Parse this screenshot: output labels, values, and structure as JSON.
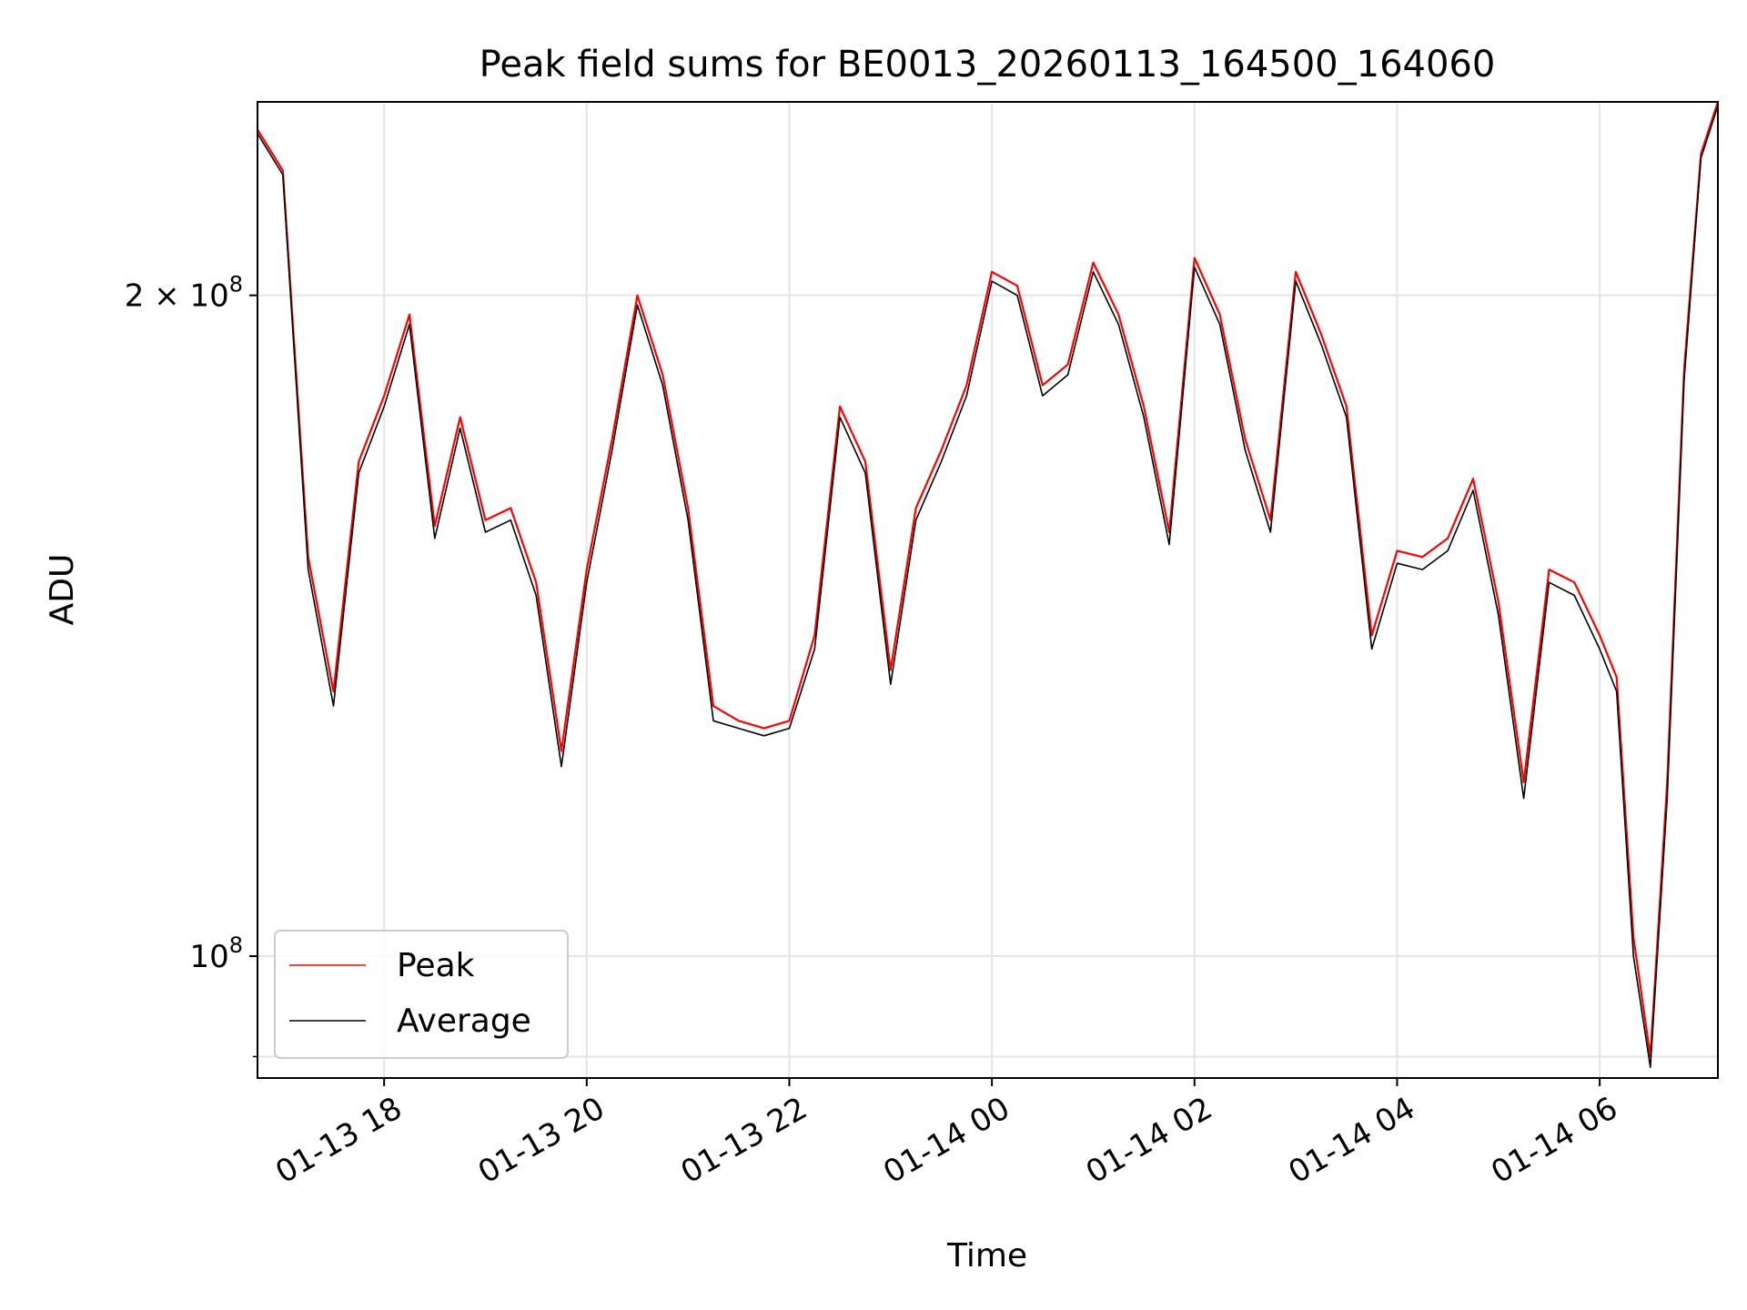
{
  "chart_data": {
    "type": "line",
    "title": "Peak field sums for BE0013_20260113_164500_164060",
    "xlabel": "Time",
    "ylabel": "ADU",
    "y_scale": "log",
    "ylim": [
      88000000,
      245000000
    ],
    "xlim": [
      "2026-01-13 16:45",
      "2026-01-14 07:10"
    ],
    "x_ticks": [
      {
        "t": "2026-01-13 18:00",
        "label": "01-13 18"
      },
      {
        "t": "2026-01-13 20:00",
        "label": "01-13 20"
      },
      {
        "t": "2026-01-13 22:00",
        "label": "01-13 22"
      },
      {
        "t": "2026-01-14 00:00",
        "label": "01-14 00"
      },
      {
        "t": "2026-01-14 02:00",
        "label": "01-14 02"
      },
      {
        "t": "2026-01-14 04:00",
        "label": "01-14 04"
      },
      {
        "t": "2026-01-14 06:00",
        "label": "01-14 06"
      }
    ],
    "y_ticks": [
      {
        "value": 200000000,
        "base": "2 × 10",
        "exp": "8"
      },
      {
        "value": 100000000,
        "base": "10",
        "exp": "8"
      }
    ],
    "y_minor_ticks": [
      90000000
    ],
    "grid": true,
    "legend_position": "lower-left",
    "series": [
      {
        "name": "Peak",
        "color": "#ff0000",
        "x": [
          "2026-01-13 16:45",
          "2026-01-13 17:00",
          "2026-01-13 17:15",
          "2026-01-13 17:30",
          "2026-01-13 17:45",
          "2026-01-13 18:00",
          "2026-01-13 18:15",
          "2026-01-13 18:30",
          "2026-01-13 18:45",
          "2026-01-13 19:00",
          "2026-01-13 19:15",
          "2026-01-13 19:30",
          "2026-01-13 19:45",
          "2026-01-13 20:00",
          "2026-01-13 20:15",
          "2026-01-13 20:30",
          "2026-01-13 20:45",
          "2026-01-13 21:00",
          "2026-01-13 21:15",
          "2026-01-13 21:30",
          "2026-01-13 21:45",
          "2026-01-13 22:00",
          "2026-01-13 22:15",
          "2026-01-13 22:30",
          "2026-01-13 22:45",
          "2026-01-13 23:00",
          "2026-01-13 23:15",
          "2026-01-13 23:30",
          "2026-01-13 23:45",
          "2026-01-14 00:00",
          "2026-01-14 00:15",
          "2026-01-14 00:30",
          "2026-01-14 00:45",
          "2026-01-14 01:00",
          "2026-01-14 01:15",
          "2026-01-14 01:30",
          "2026-01-14 01:45",
          "2026-01-14 02:00",
          "2026-01-14 02:15",
          "2026-01-14 02:30",
          "2026-01-14 02:45",
          "2026-01-14 03:00",
          "2026-01-14 03:15",
          "2026-01-14 03:30",
          "2026-01-14 03:45",
          "2026-01-14 04:00",
          "2026-01-14 04:15",
          "2026-01-14 04:30",
          "2026-01-14 04:45",
          "2026-01-14 05:00",
          "2026-01-14 05:15",
          "2026-01-14 05:30",
          "2026-01-14 05:45",
          "2026-01-14 06:00",
          "2026-01-14 06:10",
          "2026-01-14 06:20",
          "2026-01-14 06:30",
          "2026-01-14 06:40",
          "2026-01-14 06:50",
          "2026-01-14 07:00",
          "2026-01-14 07:10"
        ],
        "y": [
          238000000,
          228000000,
          152000000,
          132000000,
          168000000,
          180000000,
          196000000,
          157000000,
          176000000,
          158000000,
          160000000,
          148000000,
          124000000,
          150000000,
          172000000,
          200000000,
          184000000,
          160000000,
          130000000,
          128000000,
          127000000,
          128000000,
          140000000,
          178000000,
          168000000,
          135000000,
          160000000,
          170000000,
          182000000,
          205000000,
          202000000,
          182000000,
          186000000,
          207000000,
          196000000,
          178000000,
          156000000,
          208000000,
          196000000,
          172000000,
          158000000,
          205000000,
          192000000,
          178000000,
          140000000,
          153000000,
          152000000,
          155000000,
          165000000,
          145000000,
          120000000,
          150000000,
          148000000,
          140000000,
          134000000,
          102000000,
          90000000,
          120000000,
          185000000,
          232000000,
          245000000
        ]
      },
      {
        "name": "Average",
        "color": "#000000",
        "x": [
          "2026-01-13 16:45",
          "2026-01-13 17:00",
          "2026-01-13 17:15",
          "2026-01-13 17:30",
          "2026-01-13 17:45",
          "2026-01-13 18:00",
          "2026-01-13 18:15",
          "2026-01-13 18:30",
          "2026-01-13 18:45",
          "2026-01-13 19:00",
          "2026-01-13 19:15",
          "2026-01-13 19:30",
          "2026-01-13 19:45",
          "2026-01-13 20:00",
          "2026-01-13 20:15",
          "2026-01-13 20:30",
          "2026-01-13 20:45",
          "2026-01-13 21:00",
          "2026-01-13 21:15",
          "2026-01-13 21:30",
          "2026-01-13 21:45",
          "2026-01-13 22:00",
          "2026-01-13 22:15",
          "2026-01-13 22:30",
          "2026-01-13 22:45",
          "2026-01-13 23:00",
          "2026-01-13 23:15",
          "2026-01-13 23:30",
          "2026-01-13 23:45",
          "2026-01-14 00:00",
          "2026-01-14 00:15",
          "2026-01-14 00:30",
          "2026-01-14 00:45",
          "2026-01-14 01:00",
          "2026-01-14 01:15",
          "2026-01-14 01:30",
          "2026-01-14 01:45",
          "2026-01-14 02:00",
          "2026-01-14 02:15",
          "2026-01-14 02:30",
          "2026-01-14 02:45",
          "2026-01-14 03:00",
          "2026-01-14 03:15",
          "2026-01-14 03:30",
          "2026-01-14 03:45",
          "2026-01-14 04:00",
          "2026-01-14 04:15",
          "2026-01-14 04:30",
          "2026-01-14 04:45",
          "2026-01-14 05:00",
          "2026-01-14 05:15",
          "2026-01-14 05:30",
          "2026-01-14 05:45",
          "2026-01-14 06:00",
          "2026-01-14 06:10",
          "2026-01-14 06:20",
          "2026-01-14 06:30",
          "2026-01-14 06:40",
          "2026-01-14 06:50",
          "2026-01-14 07:00",
          "2026-01-14 07:10"
        ],
        "y": [
          237000000,
          227000000,
          150000000,
          130000000,
          166000000,
          178000000,
          194000000,
          155000000,
          174000000,
          156000000,
          158000000,
          146000000,
          122000000,
          148000000,
          170000000,
          198000000,
          182000000,
          158000000,
          128000000,
          127000000,
          126000000,
          127000000,
          138000000,
          176000000,
          166000000,
          133000000,
          158000000,
          168000000,
          180000000,
          203000000,
          200000000,
          180000000,
          184000000,
          205000000,
          194000000,
          176000000,
          154000000,
          206000000,
          194000000,
          170000000,
          156000000,
          203000000,
          190000000,
          176000000,
          138000000,
          151000000,
          150000000,
          153000000,
          163000000,
          143000000,
          118000000,
          148000000,
          146000000,
          138000000,
          132000000,
          100000000,
          89000000,
          118000000,
          183000000,
          231000000,
          244000000
        ]
      }
    ]
  }
}
